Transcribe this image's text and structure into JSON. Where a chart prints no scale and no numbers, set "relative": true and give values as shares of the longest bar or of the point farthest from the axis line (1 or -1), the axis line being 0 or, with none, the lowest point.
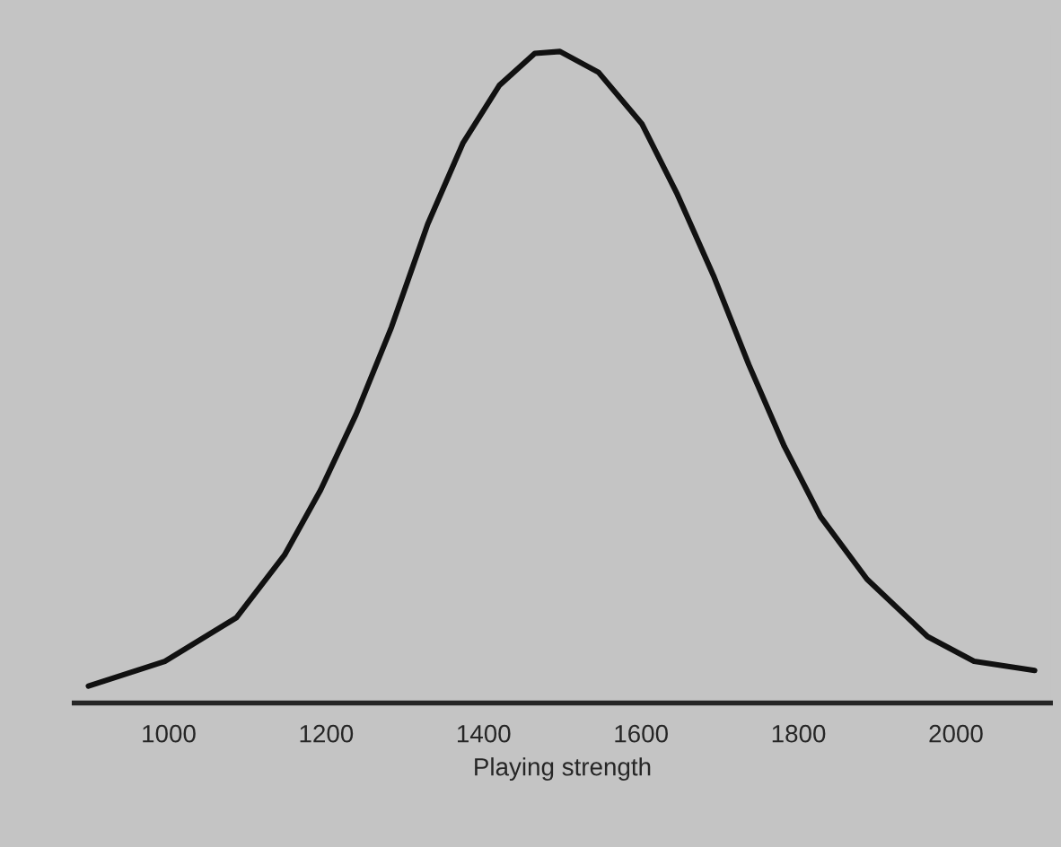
{
  "chart_data": {
    "type": "line",
    "relative": true,
    "xlabel": "Playing strength",
    "xlim": [
      880,
      2120
    ],
    "xticks": [
      1000,
      1200,
      1400,
      1600,
      1800,
      2000
    ],
    "grid": false,
    "marker": "none",
    "line_style": "solid",
    "series": [
      {
        "color": "#111111",
        "x": [
          898,
          995,
          1086,
          1147,
          1193,
          1238,
          1283,
          1329,
          1374,
          1420,
          1465,
          1497,
          1546,
          1601,
          1646,
          1692,
          1737,
          1782,
          1828,
          1887,
          1964,
          2023,
          2100
        ],
        "values": [
          0.026,
          0.064,
          0.131,
          0.227,
          0.327,
          0.443,
          0.577,
          0.735,
          0.86,
          0.948,
          0.997,
          1.0,
          0.968,
          0.889,
          0.781,
          0.656,
          0.519,
          0.394,
          0.286,
          0.19,
          0.102,
          0.064,
          0.05
        ]
      }
    ]
  }
}
